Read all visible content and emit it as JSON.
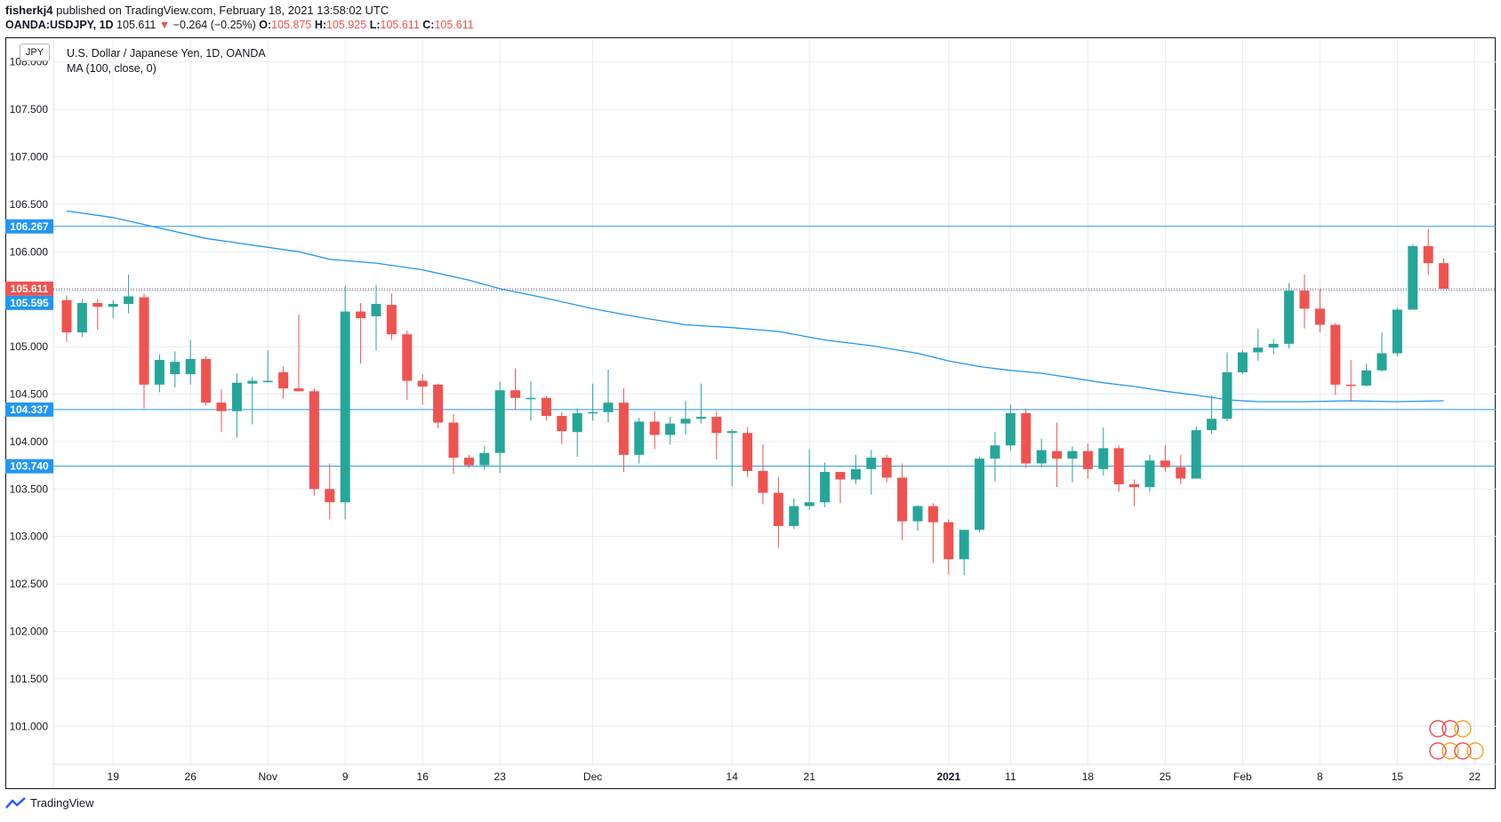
{
  "header": {
    "publisher": "fisherkj4",
    "published_text": "published on TradingView.com, February 18, 2021 13:58:02 UTC",
    "symbol": "OANDA:USDJPY, 1D",
    "last": "105.611",
    "change": "−0.264 (−0.25%)",
    "o_label": "O:",
    "o_value": "105.875",
    "h_label": "H:",
    "h_value": "105.925",
    "l_label": "L:",
    "l_value": "105.611",
    "c_label": "C:",
    "c_value": "105.611"
  },
  "legend": {
    "title": "U.S. Dollar / Japanese Yen, 1D, OANDA",
    "indicator": "MA (100, close, 0)"
  },
  "unit_badge": "JPY",
  "footer": {
    "brand": "TradingView"
  },
  "colors": {
    "up": "#26a69a",
    "down": "#ef5350",
    "ma": "#2196f3",
    "hline": "#2196f3",
    "grid": "#e9ebf0"
  },
  "chart_data": {
    "type": "candlestick",
    "ylim": [
      100.6,
      108.25
    ],
    "y_ticks": [
      "108.000",
      "107.500",
      "107.000",
      "106.500",
      "106.000",
      "105.000",
      "104.500",
      "104.000",
      "103.500",
      "103.000",
      "102.500",
      "102.000",
      "101.500",
      "101.000"
    ],
    "x_ticks": [
      {
        "i": 3,
        "label": "19"
      },
      {
        "i": 8,
        "label": "26"
      },
      {
        "i": 13,
        "label": "Nov"
      },
      {
        "i": 18,
        "label": "9"
      },
      {
        "i": 23,
        "label": "16"
      },
      {
        "i": 28,
        "label": "23"
      },
      {
        "i": 34,
        "label": "Dec"
      },
      {
        "i": 43,
        "label": "14"
      },
      {
        "i": 48,
        "label": "21"
      },
      {
        "i": 57,
        "label": "2021"
      },
      {
        "i": 61,
        "label": "11"
      },
      {
        "i": 66,
        "label": "18"
      },
      {
        "i": 71,
        "label": "25"
      },
      {
        "i": 76,
        "label": "Feb"
      },
      {
        "i": 81,
        "label": "8"
      },
      {
        "i": 86,
        "label": "15"
      },
      {
        "i": 91,
        "label": "22"
      }
    ],
    "candles": [
      [
        105.49,
        105.54,
        105.05,
        105.15
      ],
      [
        105.15,
        105.5,
        105.1,
        105.46
      ],
      [
        105.46,
        105.5,
        105.18,
        105.42
      ],
      [
        105.42,
        105.49,
        105.3,
        105.45
      ],
      [
        105.45,
        105.76,
        105.35,
        105.53
      ],
      [
        105.52,
        105.56,
        104.35,
        104.6
      ],
      [
        104.6,
        104.92,
        104.52,
        104.86
      ],
      [
        104.71,
        104.95,
        104.57,
        104.84
      ],
      [
        104.71,
        105.07,
        104.6,
        104.87
      ],
      [
        104.87,
        104.9,
        104.38,
        104.41
      ],
      [
        104.41,
        104.55,
        104.1,
        104.32
      ],
      [
        104.32,
        104.72,
        104.04,
        104.62
      ],
      [
        104.61,
        104.68,
        104.18,
        104.64
      ],
      [
        104.64,
        104.96,
        104.62,
        104.64
      ],
      [
        104.73,
        104.79,
        104.45,
        104.56
      ],
      [
        104.56,
        105.34,
        104.53,
        104.53
      ],
      [
        104.53,
        104.56,
        103.43,
        103.5
      ],
      [
        103.5,
        103.77,
        103.18,
        103.36
      ],
      [
        103.36,
        105.64,
        103.18,
        105.37
      ],
      [
        105.37,
        105.46,
        104.82,
        105.3
      ],
      [
        105.32,
        105.65,
        104.96,
        105.45
      ],
      [
        105.44,
        105.56,
        105.07,
        105.13
      ],
      [
        105.13,
        105.17,
        104.44,
        104.64
      ],
      [
        104.64,
        104.71,
        104.39,
        104.58
      ],
      [
        104.6,
        104.61,
        104.14,
        104.2
      ],
      [
        104.2,
        104.29,
        103.66,
        103.83
      ],
      [
        103.83,
        103.86,
        103.72,
        103.75
      ],
      [
        103.75,
        103.95,
        103.7,
        103.88
      ],
      [
        103.88,
        104.63,
        103.67,
        104.54
      ],
      [
        104.54,
        104.77,
        104.33,
        104.46
      ],
      [
        104.46,
        104.63,
        104.22,
        104.46
      ],
      [
        104.46,
        104.48,
        104.22,
        104.27
      ],
      [
        104.27,
        104.31,
        103.97,
        104.11
      ],
      [
        104.1,
        104.35,
        103.84,
        104.3
      ],
      [
        104.3,
        104.61,
        104.22,
        104.31
      ],
      [
        104.31,
        104.76,
        104.2,
        104.41
      ],
      [
        104.41,
        104.56,
        103.68,
        103.86
      ],
      [
        103.86,
        104.25,
        103.77,
        104.21
      ],
      [
        104.21,
        104.32,
        103.92,
        104.07
      ],
      [
        104.07,
        104.26,
        103.97,
        104.19
      ],
      [
        104.19,
        104.43,
        104.07,
        104.24
      ],
      [
        104.24,
        104.61,
        104.19,
        104.26
      ],
      [
        104.26,
        104.32,
        103.81,
        104.09
      ],
      [
        104.09,
        104.13,
        103.53,
        104.11
      ],
      [
        104.09,
        104.15,
        103.63,
        103.69
      ],
      [
        103.69,
        103.97,
        103.34,
        103.46
      ],
      [
        103.46,
        103.63,
        102.88,
        103.11
      ],
      [
        103.11,
        103.4,
        103.08,
        103.32
      ],
      [
        103.32,
        103.92,
        103.28,
        103.36
      ],
      [
        103.36,
        103.78,
        103.31,
        103.68
      ],
      [
        103.68,
        103.68,
        103.35,
        103.6
      ],
      [
        103.6,
        103.86,
        103.55,
        103.71
      ],
      [
        103.71,
        103.91,
        103.44,
        103.83
      ],
      [
        103.83,
        103.86,
        103.57,
        103.62
      ],
      [
        103.62,
        103.77,
        102.96,
        103.16
      ],
      [
        103.16,
        103.33,
        103.06,
        103.32
      ],
      [
        103.32,
        103.35,
        102.72,
        103.15
      ],
      [
        103.15,
        103.18,
        102.6,
        102.76
      ],
      [
        102.76,
        103.06,
        102.59,
        103.07
      ],
      [
        103.07,
        103.84,
        103.04,
        103.82
      ],
      [
        103.82,
        104.1,
        103.58,
        103.96
      ],
      [
        103.96,
        104.39,
        103.9,
        104.3
      ],
      [
        104.3,
        104.35,
        103.72,
        103.77
      ],
      [
        103.77,
        104.03,
        103.73,
        103.91
      ],
      [
        103.9,
        104.2,
        103.52,
        103.82
      ],
      [
        103.82,
        103.95,
        103.57,
        103.9
      ],
      [
        103.9,
        103.98,
        103.61,
        103.71
      ],
      [
        103.71,
        104.15,
        103.64,
        103.93
      ],
      [
        103.93,
        103.96,
        103.47,
        103.55
      ],
      [
        103.55,
        103.6,
        103.32,
        103.52
      ],
      [
        103.52,
        103.86,
        103.47,
        103.8
      ],
      [
        103.8,
        103.96,
        103.68,
        103.73
      ],
      [
        103.73,
        103.86,
        103.55,
        103.61
      ],
      [
        103.61,
        104.16,
        103.61,
        104.12
      ],
      [
        104.12,
        104.49,
        104.08,
        104.24
      ],
      [
        104.24,
        104.94,
        104.21,
        104.73
      ],
      [
        104.73,
        104.96,
        104.71,
        104.94
      ],
      [
        104.94,
        105.19,
        104.85,
        104.99
      ],
      [
        104.99,
        105.08,
        104.92,
        105.03
      ],
      [
        105.03,
        105.67,
        104.98,
        105.59
      ],
      [
        105.59,
        105.76,
        105.19,
        105.4
      ],
      [
        105.4,
        105.61,
        105.15,
        105.23
      ],
      [
        105.23,
        105.25,
        104.49,
        104.6
      ],
      [
        104.6,
        104.86,
        104.42,
        104.59
      ],
      [
        104.59,
        104.82,
        104.58,
        104.75
      ],
      [
        104.75,
        105.15,
        104.74,
        104.93
      ],
      [
        104.93,
        105.41,
        104.9,
        105.39
      ],
      [
        105.39,
        106.08,
        105.4,
        106.06
      ],
      [
        106.06,
        106.24,
        105.76,
        105.88
      ],
      [
        105.88,
        105.93,
        105.61,
        105.61
      ]
    ],
    "ma_line": [
      [
        0,
        106.43
      ],
      [
        3,
        106.36
      ],
      [
        6,
        106.25
      ],
      [
        9,
        106.14
      ],
      [
        12,
        106.07
      ],
      [
        15,
        106.0
      ],
      [
        17,
        105.92
      ],
      [
        20,
        105.88
      ],
      [
        23,
        105.81
      ],
      [
        26,
        105.7
      ],
      [
        28,
        105.61
      ],
      [
        31,
        105.51
      ],
      [
        34,
        105.4
      ],
      [
        37,
        105.31
      ],
      [
        40,
        105.23
      ],
      [
        43,
        105.2
      ],
      [
        46,
        105.16
      ],
      [
        49,
        105.07
      ],
      [
        52,
        105.01
      ],
      [
        55,
        104.93
      ],
      [
        57,
        104.85
      ],
      [
        59,
        104.79
      ],
      [
        61,
        104.75
      ],
      [
        63,
        104.72
      ],
      [
        65,
        104.67
      ],
      [
        67,
        104.62
      ],
      [
        69,
        104.58
      ],
      [
        71,
        104.53
      ],
      [
        73,
        104.49
      ],
      [
        75,
        104.44
      ],
      [
        77,
        104.42
      ],
      [
        80,
        104.42
      ],
      [
        83,
        104.43
      ],
      [
        86,
        104.42
      ],
      [
        89,
        104.43
      ]
    ],
    "hlines": [
      {
        "value": 106.267,
        "label": "106.267",
        "color": "#2196f3"
      },
      {
        "value": 104.337,
        "label": "104.337",
        "color": "#2196f3"
      },
      {
        "value": 103.74,
        "label": "103.740",
        "color": "#2196f3"
      }
    ],
    "price_lines": [
      {
        "value": 105.611,
        "label": "105.611",
        "color": "#ef5350"
      },
      {
        "value": 105.595,
        "label": "105.595",
        "color": "#2196f3"
      }
    ]
  }
}
